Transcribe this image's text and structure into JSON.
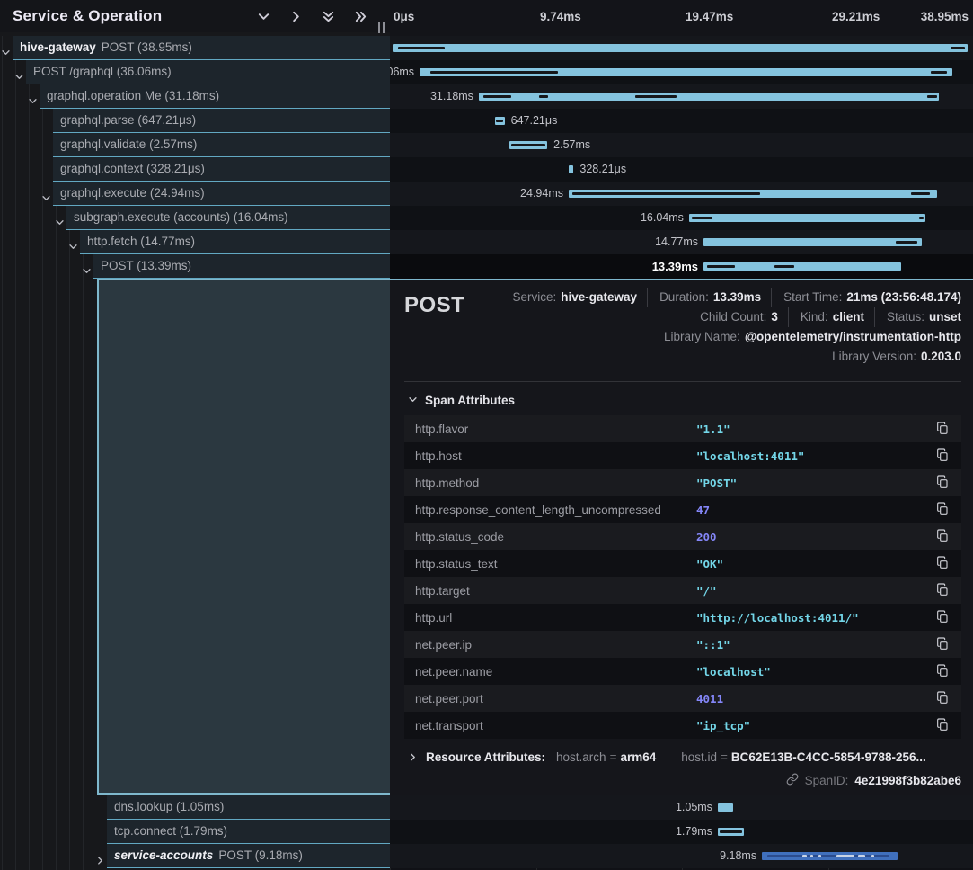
{
  "header": {
    "title": "Service & Operation",
    "icons": [
      "collapse-one",
      "expand-one",
      "collapse-all",
      "expand-all"
    ]
  },
  "timeline_axis": {
    "ticks": [
      "0μs",
      "9.74ms",
      "19.47ms",
      "29.21ms",
      "38.95ms"
    ],
    "total_ms": 38.95
  },
  "colors": {
    "bar_light": "#84c3de",
    "bar_dark": "#4070bd",
    "row_border": "#62a8c2",
    "selection": "#7fb8cd",
    "string_value": "#73d6e8",
    "number_value": "#8486f8"
  },
  "spans": [
    {
      "depth": 0,
      "expander": "down",
      "service": "hive-gateway",
      "label": "POST (38.95ms)",
      "dur_label": "38.95ms",
      "start_ms": 0,
      "duration_ms": 38.95,
      "label_side": "none",
      "section": "top",
      "marks": [
        [
          1,
          8,
          "d"
        ],
        [
          97,
          2.5,
          "d"
        ]
      ]
    },
    {
      "depth": 1,
      "expander": "down",
      "service": "",
      "label": "POST /graphql (36.06ms)",
      "dur_label": "36.06ms",
      "start_ms": 1.83,
      "duration_ms": 36.06,
      "label_side": "left",
      "section": "top",
      "marks": [
        [
          2,
          24,
          "d"
        ],
        [
          96,
          3,
          "d"
        ]
      ]
    },
    {
      "depth": 2,
      "expander": "down",
      "service": "",
      "label": "graphql.operation Me (31.18ms)",
      "dur_label": "31.18ms",
      "start_ms": 5.84,
      "duration_ms": 31.18,
      "label_side": "left",
      "section": "top",
      "marks": [
        [
          1,
          6,
          "d"
        ],
        [
          13,
          2,
          "d"
        ],
        [
          34,
          9,
          "d"
        ],
        [
          97.5,
          2,
          "d"
        ]
      ]
    },
    {
      "depth": 3,
      "expander": "none",
      "service": "",
      "label": "graphql.parse (647.21μs)",
      "dur_label": "647.21μs",
      "start_ms": 6.94,
      "duration_ms": 0.647,
      "label_side": "right",
      "section": "top",
      "marks": [
        [
          12,
          76,
          "d"
        ]
      ]
    },
    {
      "depth": 3,
      "expander": "none",
      "service": "",
      "label": "graphql.validate (2.57ms)",
      "dur_label": "2.57ms",
      "start_ms": 7.91,
      "duration_ms": 2.57,
      "label_side": "right",
      "section": "top",
      "marks": [
        [
          6,
          88,
          "d"
        ]
      ]
    },
    {
      "depth": 3,
      "expander": "none",
      "service": "",
      "label": "graphql.context (328.21μs)",
      "dur_label": "328.21μs",
      "start_ms": 11.93,
      "duration_ms": 0.328,
      "label_side": "right",
      "section": "top",
      "marks": []
    },
    {
      "depth": 3,
      "expander": "down",
      "service": "",
      "label": "graphql.execute (24.94ms)",
      "dur_label": "24.94ms",
      "start_ms": 11.93,
      "duration_ms": 24.94,
      "label_side": "left",
      "section": "top",
      "marks": [
        [
          1,
          51,
          "d"
        ],
        [
          93,
          5,
          "d"
        ]
      ]
    },
    {
      "depth": 4,
      "expander": "down",
      "service": "",
      "label": "subgraph.execute (accounts) (16.04ms)",
      "dur_label": "16.04ms",
      "start_ms": 20.08,
      "duration_ms": 16.04,
      "label_side": "left",
      "section": "top",
      "marks": [
        [
          1,
          9,
          "d"
        ],
        [
          97,
          2,
          "d"
        ]
      ]
    },
    {
      "depth": 5,
      "expander": "down",
      "service": "",
      "label": "http.fetch (14.77ms)",
      "dur_label": "14.77ms",
      "start_ms": 21.06,
      "duration_ms": 14.77,
      "label_side": "left",
      "section": "top",
      "marks": [
        [
          88,
          10,
          "d"
        ]
      ]
    },
    {
      "depth": 6,
      "expander": "down",
      "service": "",
      "label": "POST (13.39ms)",
      "dur_label": "13.39ms",
      "start_ms": 21.06,
      "duration_ms": 13.39,
      "label_side": "left",
      "section": "top",
      "selected": true,
      "marks": [
        [
          2,
          14,
          "d"
        ],
        [
          36,
          10,
          "d"
        ]
      ]
    },
    {
      "depth": 7,
      "expander": "none",
      "service": "",
      "label": "dns.lookup (1.05ms)",
      "dur_label": "1.05ms",
      "start_ms": 22.03,
      "duration_ms": 1.05,
      "label_side": "left",
      "section": "bottom",
      "marks": []
    },
    {
      "depth": 7,
      "expander": "none",
      "service": "",
      "label": "tcp.connect (1.79ms)",
      "dur_label": "1.79ms",
      "start_ms": 22.03,
      "duration_ms": 1.79,
      "label_side": "left",
      "section": "bottom",
      "marks": [
        [
          8,
          84,
          "d"
        ]
      ]
    },
    {
      "depth": 7,
      "expander": "right",
      "service": "service-accounts",
      "service_italic": true,
      "label": "POST (9.18ms)",
      "dur_label": "9.18ms",
      "start_ms": 25.02,
      "duration_ms": 9.18,
      "label_side": "left",
      "section": "bottom",
      "bar_color": "dark",
      "marks": [
        [
          4,
          90,
          "d2"
        ],
        [
          30,
          3,
          "l"
        ],
        [
          36,
          2,
          "l"
        ],
        [
          42,
          2,
          "l"
        ],
        [
          55,
          13,
          "l"
        ],
        [
          71,
          5,
          "l"
        ],
        [
          81,
          2,
          "l"
        ]
      ]
    }
  ],
  "detail": {
    "title": "POST",
    "attrs_title": "Span Attributes",
    "span_id_label": "SpanID:",
    "span_id": "4e21998f3b82abe6",
    "lines": [
      [
        {
          "label": "Service:",
          "value": "hive-gateway"
        },
        {
          "label": "Duration:",
          "value": "13.39ms"
        },
        {
          "label": "Start Time:",
          "value": "21ms (23:56:48.174)"
        }
      ],
      [
        {
          "label": "Child Count:",
          "value": "3"
        },
        {
          "label": "Kind:",
          "value": "client"
        },
        {
          "label": "Status:",
          "value": "unset"
        }
      ],
      [
        {
          "label": "Library Name:",
          "value": "@opentelemetry/instrumentation-http"
        }
      ],
      [
        {
          "label": "Library Version:",
          "value": "0.203.0"
        }
      ]
    ]
  },
  "attributes": [
    {
      "key": "http.flavor",
      "value": "\"1.1\"",
      "type": "string"
    },
    {
      "key": "http.host",
      "value": "\"localhost:4011\"",
      "type": "string"
    },
    {
      "key": "http.method",
      "value": "\"POST\"",
      "type": "string"
    },
    {
      "key": "http.response_content_length_uncompressed",
      "value": "47",
      "type": "number"
    },
    {
      "key": "http.status_code",
      "value": "200",
      "type": "number"
    },
    {
      "key": "http.status_text",
      "value": "\"OK\"",
      "type": "string"
    },
    {
      "key": "http.target",
      "value": "\"/\"",
      "type": "string"
    },
    {
      "key": "http.url",
      "value": "\"http://localhost:4011/\"",
      "type": "string"
    },
    {
      "key": "net.peer.ip",
      "value": "\"::1\"",
      "type": "string"
    },
    {
      "key": "net.peer.name",
      "value": "\"localhost\"",
      "type": "string"
    },
    {
      "key": "net.peer.port",
      "value": "4011",
      "type": "number"
    },
    {
      "key": "net.transport",
      "value": "\"ip_tcp\"",
      "type": "string"
    }
  ],
  "resource": {
    "title": "Resource Attributes:",
    "items": [
      {
        "key": "host.arch",
        "value": "arm64"
      },
      {
        "key": "host.id",
        "value": "BC62E13B-C4CC-5854-9788-256..."
      }
    ]
  }
}
